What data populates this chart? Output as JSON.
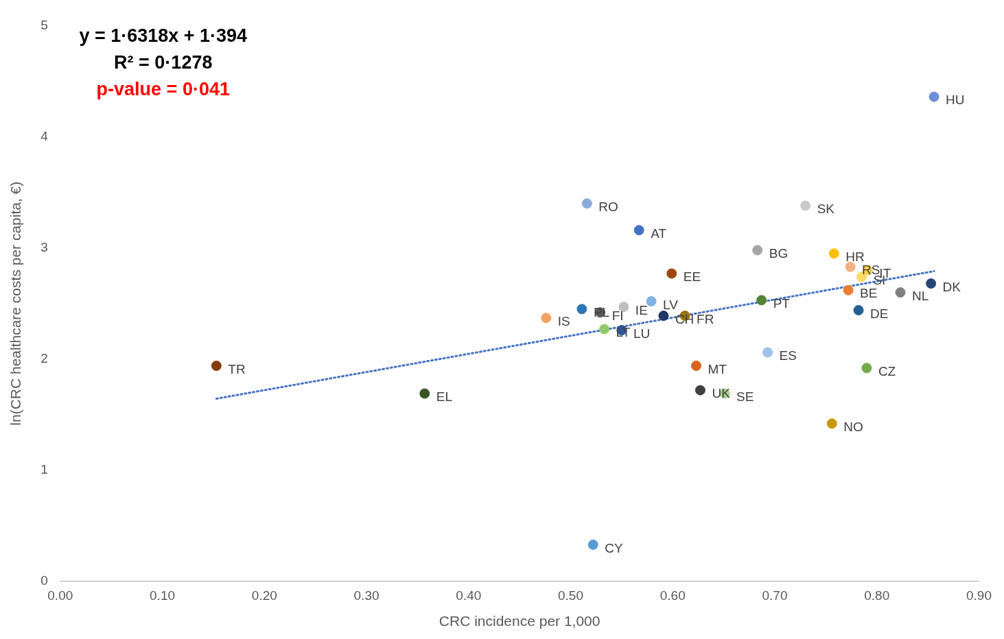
{
  "chart_data": {
    "type": "scatter",
    "xlabel": "CRC incidence per 1,000",
    "ylabel": "ln(CRC healthcare costs per capita, €)",
    "annotations": [
      "y = 1·6318x + 1·394",
      "R² = 0·1278",
      "p-value = 0·041"
    ],
    "xlim": [
      0,
      0.9
    ],
    "ylim": [
      0,
      5
    ],
    "xticks": [
      {
        "value": 0,
        "label": "0.00"
      },
      {
        "value": 0.1,
        "label": "0.10"
      },
      {
        "value": 0.2,
        "label": "0.20"
      },
      {
        "value": 0.3,
        "label": "0.30"
      },
      {
        "value": 0.4,
        "label": "0.40"
      },
      {
        "value": 0.5,
        "label": "0.50"
      },
      {
        "value": 0.6,
        "label": "0.60"
      },
      {
        "value": 0.7,
        "label": "0.70"
      },
      {
        "value": 0.8,
        "label": "0.80"
      },
      {
        "value": 0.9,
        "label": "0.90"
      }
    ],
    "yticks": [
      0,
      1,
      2,
      3,
      4,
      5
    ],
    "grid": false,
    "legend": false,
    "marker": "circle",
    "series": [
      {
        "name": "HU",
        "color": "#6a8fd4",
        "x": [
          0.856
        ],
        "values": [
          4.36
        ]
      },
      {
        "name": "RO",
        "color": "#8eaadb",
        "x": [
          0.516
        ],
        "values": [
          3.4
        ]
      },
      {
        "name": "AT",
        "color": "#4472c4",
        "x": [
          0.567
        ],
        "values": [
          3.16
        ]
      },
      {
        "name": "SK",
        "color": "#c9c9c9",
        "x": [
          0.73
        ],
        "values": [
          3.38
        ]
      },
      {
        "name": "BG",
        "color": "#a5a5a5",
        "x": [
          0.683
        ],
        "values": [
          2.98
        ]
      },
      {
        "name": "HR",
        "color": "#ffc000",
        "x": [
          0.758
        ],
        "values": [
          2.95
        ]
      },
      {
        "name": "EE",
        "color": "#9e480e",
        "x": [
          0.599
        ],
        "values": [
          2.77
        ]
      },
      {
        "name": "RS",
        "color": "#f4b183",
        "x": [
          0.774
        ],
        "values": [
          2.83
        ]
      },
      {
        "name": "SI",
        "color": "#ffd966",
        "x": [
          0.785
        ],
        "values": [
          2.74
        ]
      },
      {
        "name": "IT",
        "color": "#ffd34d",
        "x": [
          0.791
        ],
        "values": [
          2.8
        ]
      },
      {
        "name": "DK",
        "color": "#264478",
        "x": [
          0.853
        ],
        "values": [
          2.68
        ]
      },
      {
        "name": "BE",
        "color": "#ed7d31",
        "x": [
          0.772
        ],
        "values": [
          2.62
        ]
      },
      {
        "name": "NL",
        "color": "#7f7f7f",
        "x": [
          0.823
        ],
        "values": [
          2.6
        ]
      },
      {
        "name": "PT",
        "color": "#548235",
        "x": [
          0.687
        ],
        "values": [
          2.53
        ]
      },
      {
        "name": "IS",
        "color": "#f4a261",
        "x": [
          0.476
        ],
        "values": [
          2.37
        ]
      },
      {
        "name": "PL",
        "color": "#2e75b6",
        "x": [
          0.511
        ],
        "values": [
          2.45
        ]
      },
      {
        "name": "FI",
        "color": "#595959",
        "x": [
          0.529
        ],
        "values": [
          2.42
        ]
      },
      {
        "name": "IE",
        "color": "#bfbfbf",
        "x": [
          0.552
        ],
        "values": [
          2.47
        ]
      },
      {
        "name": "LV",
        "color": "#7fb2e0",
        "x": [
          0.579
        ],
        "values": [
          2.52
        ]
      },
      {
        "name": "CH",
        "color": "#1f3864",
        "x": [
          0.591
        ],
        "values": [
          2.39
        ]
      },
      {
        "name": "FR",
        "color": "#997300",
        "x": [
          0.612
        ],
        "values": [
          2.39
        ]
      },
      {
        "name": "LT",
        "color": "#8fcb6a",
        "x": [
          0.533
        ],
        "values": [
          2.27
        ]
      },
      {
        "name": "LU",
        "color": "#2f5597",
        "x": [
          0.55
        ],
        "values": [
          2.26
        ]
      },
      {
        "name": "DE",
        "color": "#255e91",
        "x": [
          0.782
        ],
        "values": [
          2.44
        ]
      },
      {
        "name": "ES",
        "color": "#9dc3e6",
        "x": [
          0.693
        ],
        "values": [
          2.06
        ]
      },
      {
        "name": "CZ",
        "color": "#70ad47",
        "x": [
          0.79
        ],
        "values": [
          1.92
        ]
      },
      {
        "name": "MT",
        "color": "#d9621e",
        "x": [
          0.623
        ],
        "values": [
          1.94
        ]
      },
      {
        "name": "UK",
        "color": "#404040",
        "x": [
          0.627
        ],
        "values": [
          1.72
        ]
      },
      {
        "name": "SE",
        "color": "#a9d18e",
        "x": [
          0.651
        ],
        "values": [
          1.69
        ]
      },
      {
        "name": "NO",
        "color": "#c79a00",
        "x": [
          0.756
        ],
        "values": [
          1.42
        ]
      },
      {
        "name": "TR",
        "color": "#843c0c",
        "x": [
          0.153
        ],
        "values": [
          1.94
        ]
      },
      {
        "name": "EL",
        "color": "#375623",
        "x": [
          0.357
        ],
        "values": [
          1.69
        ]
      },
      {
        "name": "CY",
        "color": "#5b9bd5",
        "x": [
          0.522
        ],
        "values": [
          0.33
        ]
      },
      {
        "type": "line",
        "color": "#4472c4",
        "line_style": "dotted",
        "marker": "none",
        "x": [
          0.153,
          0.856
        ],
        "values": [
          1.644,
          2.791
        ]
      }
    ]
  }
}
